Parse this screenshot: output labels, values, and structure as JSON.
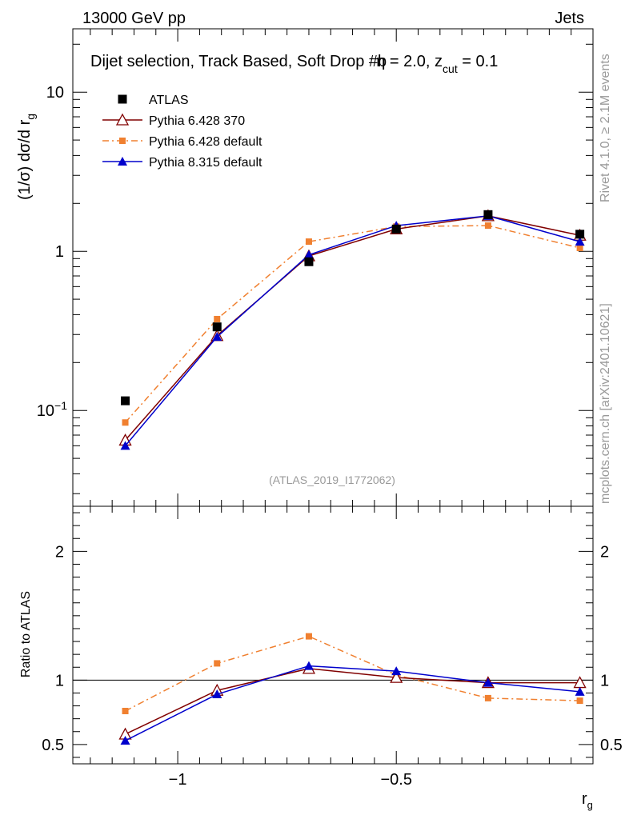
{
  "header": {
    "left": "13000 GeV pp",
    "right": "Jets"
  },
  "side_labels": {
    "rivet": "Rivet 4.1.0, ≥ 2.1M events",
    "mcplots": "mcplots.cern.ch [arXiv:2401.10621]"
  },
  "chart_data": {
    "type": "scatter",
    "title_parts": {
      "main": "Dijet selection, Track Based, Soft Drop #b",
      "eta": "η = 2.0, z",
      "sub": "cut",
      "tail": " = 0.1"
    },
    "analysis_id": "(ATLAS_2019_I1772062)",
    "xlabel": "r",
    "xlabel_sub": "g",
    "ylabel_main": "(1/σ) dσ/d r",
    "ylabel_main_sub": "g",
    "ylabel_ratio": "Ratio to ATLAS",
    "xlim": [
      -1.24,
      -0.05
    ],
    "ylim_main": [
      0.025,
      25
    ],
    "ylim_ratio": [
      0.35,
      2.35
    ],
    "x_ticks": [
      {
        "value": -1.0,
        "label": "−1"
      },
      {
        "value": -0.5,
        "label": "−0.5"
      }
    ],
    "y_ticks_main": [
      {
        "value": 0.1,
        "label": "10",
        "exp": "−1"
      },
      {
        "value": 1,
        "label": "1",
        "exp": ""
      },
      {
        "value": 10,
        "label": "10",
        "exp": ""
      }
    ],
    "y_ticks_ratio": [
      {
        "value": 0.5,
        "label": "0.5"
      },
      {
        "value": 1,
        "label": "1"
      },
      {
        "value": 2,
        "label": "2"
      }
    ],
    "x": [
      -1.12,
      -0.91,
      -0.7,
      -0.5,
      -0.29,
      -0.08
    ],
    "series": [
      {
        "name": "ATLAS",
        "marker": "square",
        "color": "#000000",
        "line": "none",
        "values": [
          0.115,
          0.335,
          0.86,
          1.38,
          1.7,
          1.28
        ],
        "ratio": [
          1,
          1,
          1,
          1,
          1,
          1
        ]
      },
      {
        "name": "Pythia 6.428 370",
        "marker": "triangle-open",
        "color": "#800000",
        "line": "solid",
        "values": [
          0.065,
          0.295,
          0.935,
          1.38,
          1.67,
          1.26
        ],
        "ratio": [
          0.58,
          0.92,
          1.09,
          1.02,
          0.98,
          0.98
        ]
      },
      {
        "name": "Pythia 6.428 default",
        "marker": "square-small",
        "color": "#f08030",
        "line": "dashdot",
        "values": [
          0.084,
          0.375,
          1.15,
          1.43,
          1.45,
          1.05
        ],
        "ratio": [
          0.76,
          1.13,
          1.34,
          1.04,
          0.86,
          0.84
        ]
      },
      {
        "name": "Pythia 8.315 default",
        "marker": "triangle",
        "color": "#0000cc",
        "line": "solid",
        "values": [
          0.06,
          0.29,
          0.95,
          1.45,
          1.67,
          1.15
        ],
        "ratio": [
          0.53,
          0.89,
          1.11,
          1.07,
          0.98,
          0.91
        ]
      }
    ]
  }
}
